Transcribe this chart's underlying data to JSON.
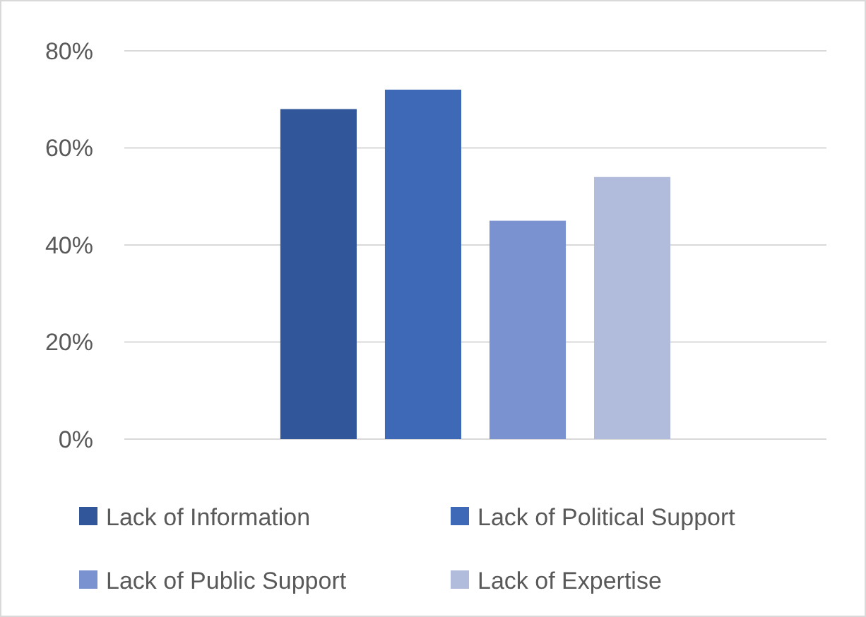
{
  "chart_data": {
    "type": "bar",
    "categories": [
      null
    ],
    "series": [
      {
        "name": "Lack of Information",
        "color": "#31569a",
        "values": [
          68
        ]
      },
      {
        "name": "Lack of Political Support",
        "color": "#3e69b6",
        "values": [
          72
        ]
      },
      {
        "name": "Lack of Public Support",
        "color": "#7a92cf",
        "values": [
          45
        ]
      },
      {
        "name": "Lack of Expertise",
        "color": "#b1bcdd",
        "values": [
          54
        ]
      }
    ],
    "ylim": [
      0,
      80
    ],
    "yticks": [
      {
        "value": 0,
        "label": "0%"
      },
      {
        "value": 20,
        "label": "20%"
      },
      {
        "value": 40,
        "label": "40%"
      },
      {
        "value": 60,
        "label": "60%"
      },
      {
        "value": 80,
        "label": "80%"
      }
    ],
    "grid": "y",
    "legend": "bottom"
  }
}
